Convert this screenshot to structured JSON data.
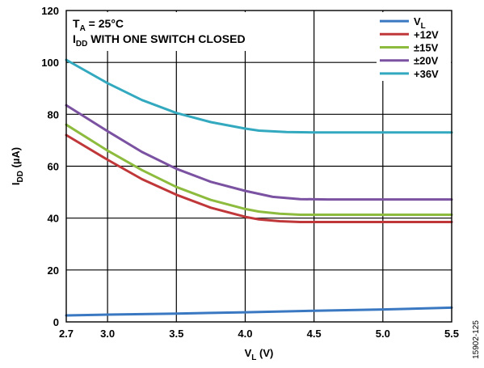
{
  "chart_data": {
    "type": "line",
    "xlabel": {
      "main": "V",
      "sub": "L",
      "tail": " (V)"
    },
    "ylabel": {
      "main": "I",
      "sub": "DD",
      "tail": " (µA)"
    },
    "xlim": [
      2.7,
      5.5
    ],
    "ylim": [
      0,
      120
    ],
    "xticks": [
      2.7,
      3.0,
      3.5,
      4.0,
      4.5,
      5.0,
      5.5
    ],
    "xtick_labels": [
      "2.7",
      "3.0",
      "3.5",
      "4.0",
      "4.5",
      "5.0",
      "5.5"
    ],
    "yticks": [
      0,
      20,
      40,
      60,
      80,
      100,
      120
    ],
    "ytick_labels": [
      "0",
      "20",
      "40",
      "60",
      "80",
      "100",
      "120"
    ],
    "grid": true,
    "legend_position": "top-right",
    "annotations": {
      "line1": {
        "main": "T",
        "sub": "A",
        "tail": " = 25°C"
      },
      "line2": {
        "main": "I",
        "sub": "DD",
        "tail": " WITH ONE SWITCH CLOSED"
      }
    },
    "series": [
      {
        "name": "V",
        "name_sub": "L",
        "color": "#3a78c2",
        "x": [
          2.7,
          3.0,
          3.5,
          4.0,
          4.5,
          5.0,
          5.5
        ],
        "y": [
          2.5,
          2.8,
          3.2,
          3.7,
          4.3,
          4.8,
          5.5
        ]
      },
      {
        "name": "+12V",
        "color": "#c0373a",
        "x": [
          2.7,
          3.0,
          3.25,
          3.5,
          3.75,
          4.0,
          4.1,
          4.25,
          4.4,
          4.6,
          5.0,
          5.5
        ],
        "y": [
          72,
          62.5,
          55,
          49,
          44,
          40.5,
          39.5,
          38.8,
          38.5,
          38.5,
          38.5,
          38.5
        ]
      },
      {
        "name": "±15V",
        "color": "#8dbb3e",
        "x": [
          2.7,
          3.0,
          3.25,
          3.5,
          3.75,
          4.0,
          4.1,
          4.25,
          4.4,
          4.6,
          5.0,
          5.5
        ],
        "y": [
          76,
          66,
          58.5,
          52,
          47,
          43.5,
          42.5,
          41.7,
          41.3,
          41.3,
          41.3,
          41.3
        ]
      },
      {
        "name": "±20V",
        "color": "#7b52a1",
        "x": [
          2.7,
          3.0,
          3.25,
          3.5,
          3.75,
          4.0,
          4.2,
          4.4,
          4.6,
          5.0,
          5.5
        ],
        "y": [
          83.5,
          73.5,
          65.5,
          59,
          54,
          50.5,
          48.2,
          47.3,
          47.2,
          47.2,
          47.2
        ]
      },
      {
        "name": "+36V",
        "color": "#33a9bf",
        "x": [
          2.7,
          3.0,
          3.25,
          3.5,
          3.75,
          4.0,
          4.1,
          4.3,
          4.5,
          5.0,
          5.5
        ],
        "y": [
          101,
          92,
          85.5,
          80.5,
          77,
          74.5,
          73.7,
          73.2,
          73,
          73,
          73
        ]
      }
    ]
  },
  "figure_id": "15902-125"
}
